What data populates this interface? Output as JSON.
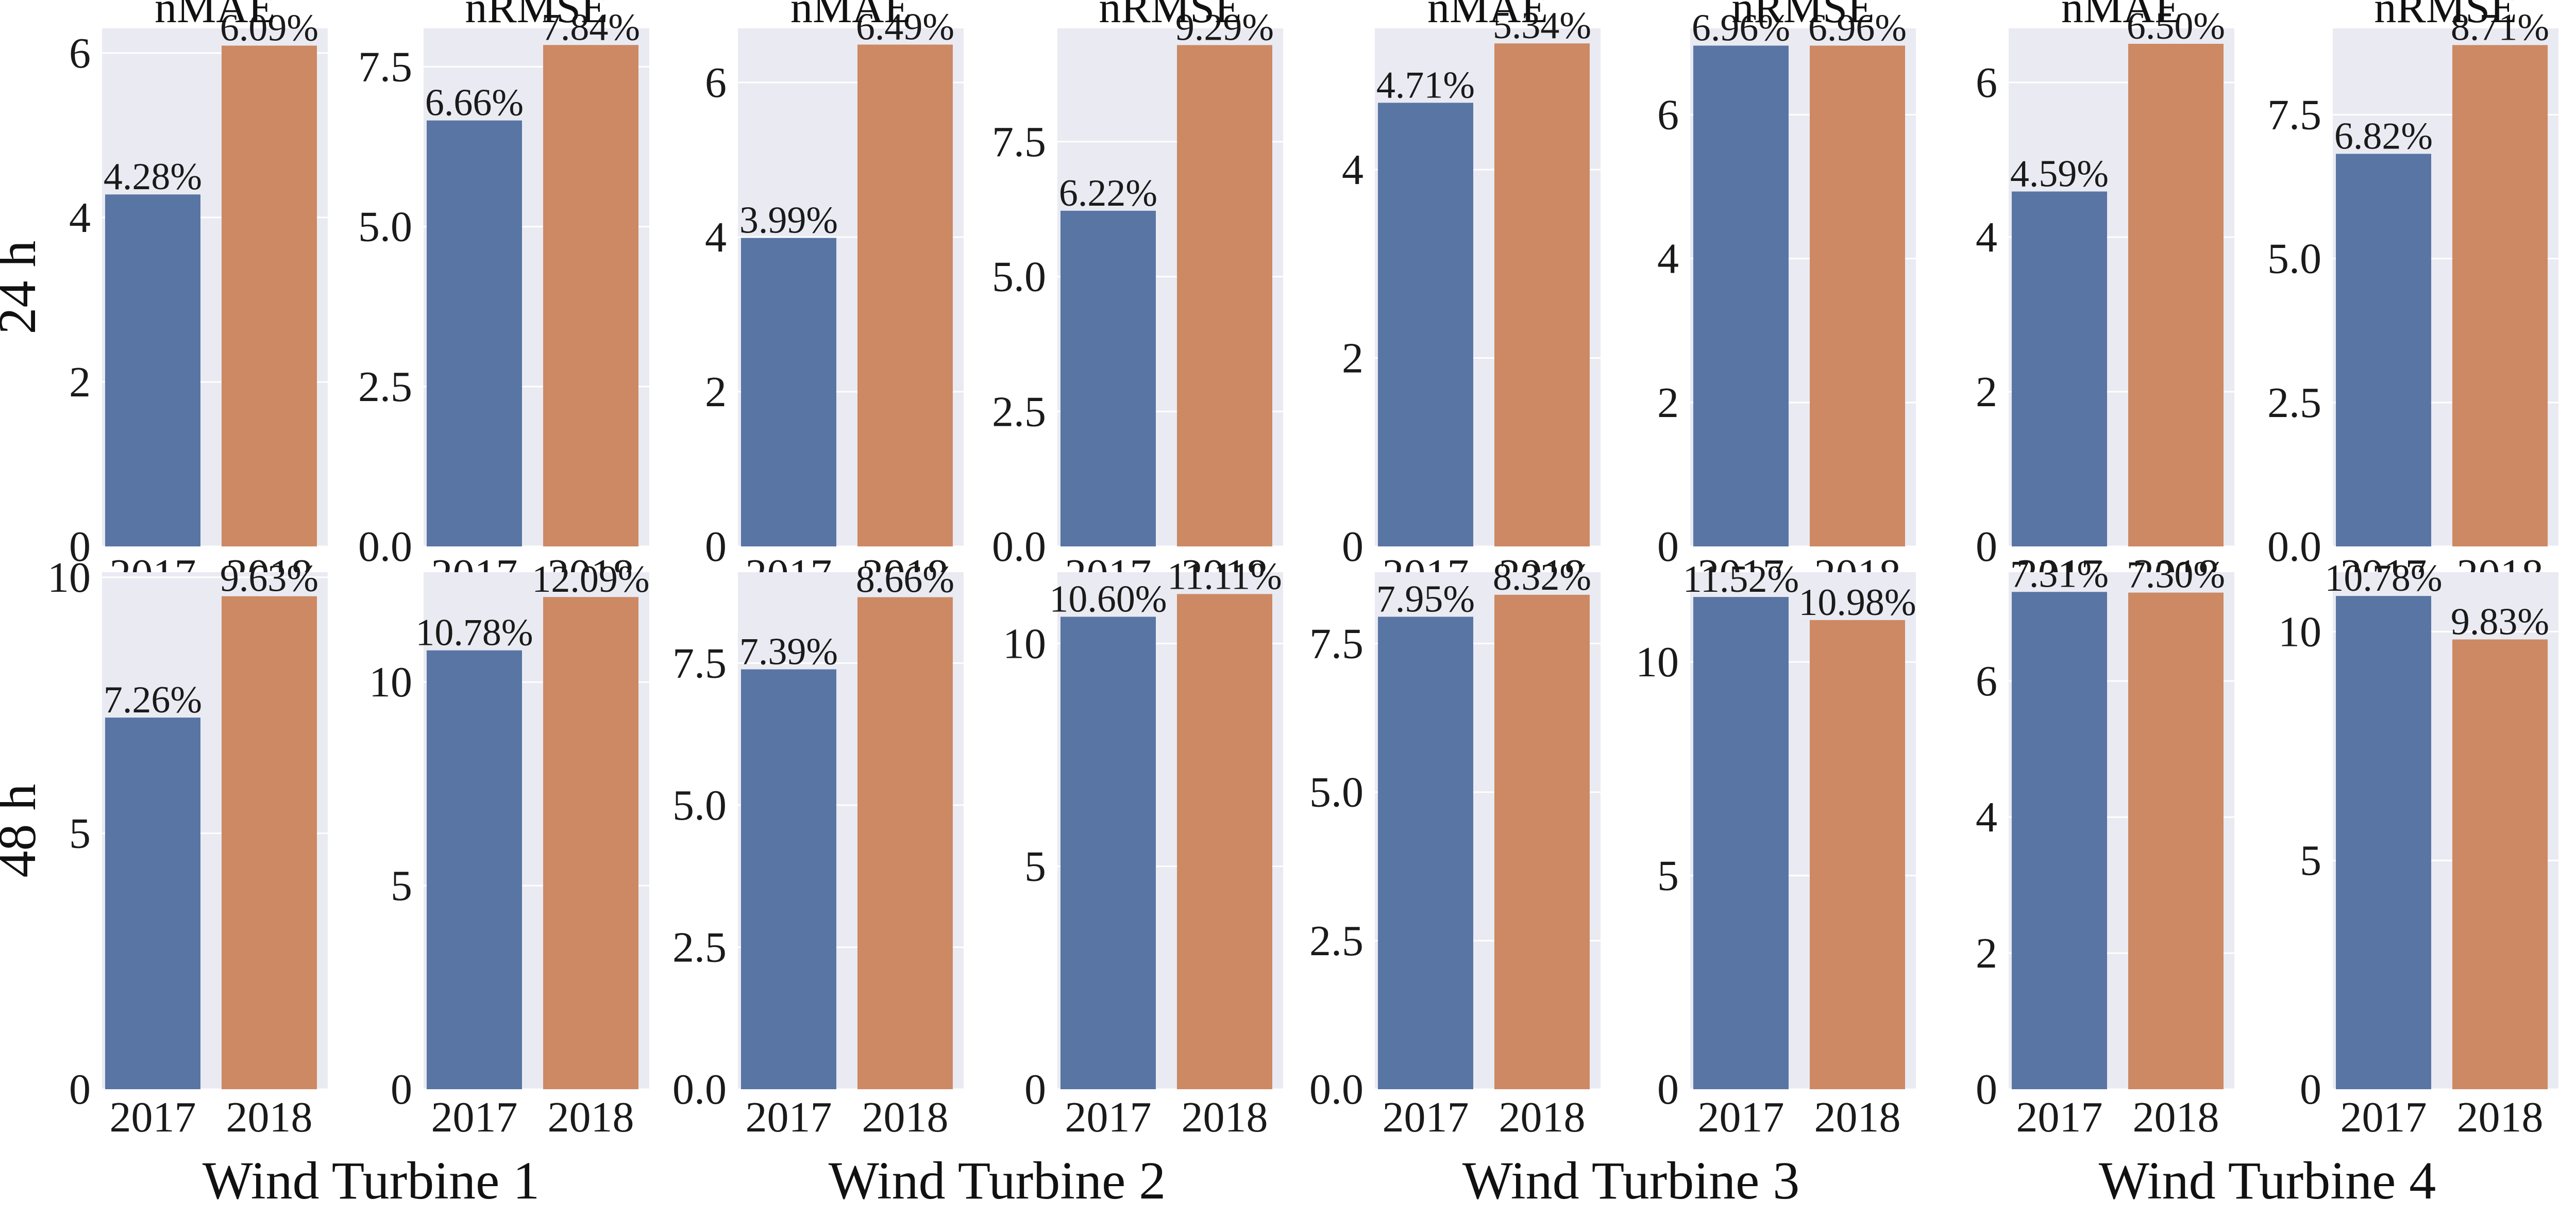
{
  "chart_data": {
    "type": "bar",
    "categories": [
      "2017",
      "2018"
    ],
    "colors": {
      "2017": "#5875A4",
      "2018": "#CC8963"
    },
    "rows": [
      {
        "label": "24 h"
      },
      {
        "label": "48 h"
      }
    ],
    "groups": [
      {
        "label": "Wind Turbine 1"
      },
      {
        "label": "Wind Turbine 2"
      },
      {
        "label": "Wind Turbine 3"
      },
      {
        "label": "Wind Turbine 4"
      }
    ],
    "panels": [
      {
        "row": 0,
        "col": 0,
        "title": "nMAE",
        "values": [
          4.28,
          6.09
        ],
        "labels": [
          "4.28%",
          "6.09%"
        ],
        "ylim": [
          0,
          6.3
        ],
        "yticks": [
          "0",
          "2",
          "4",
          "6"
        ]
      },
      {
        "row": 0,
        "col": 1,
        "title": "nRMSE",
        "values": [
          6.66,
          7.84
        ],
        "labels": [
          "6.66%",
          "7.84%"
        ],
        "ylim": [
          0,
          8.1
        ],
        "yticks": [
          "0.0",
          "2.5",
          "5.0",
          "7.5"
        ]
      },
      {
        "row": 0,
        "col": 2,
        "title": "nMAE",
        "values": [
          3.99,
          6.49
        ],
        "labels": [
          "3.99%",
          "6.49%"
        ],
        "ylim": [
          0,
          6.7
        ],
        "yticks": [
          "0",
          "2",
          "4",
          "6"
        ]
      },
      {
        "row": 0,
        "col": 3,
        "title": "nRMSE",
        "values": [
          6.22,
          9.29
        ],
        "labels": [
          "6.22%",
          "9.29%"
        ],
        "ylim": [
          0,
          9.6
        ],
        "yticks": [
          "0.0",
          "2.5",
          "5.0",
          "7.5"
        ]
      },
      {
        "row": 0,
        "col": 4,
        "title": "nMAE",
        "values": [
          4.71,
          5.34
        ],
        "labels": [
          "4.71%",
          "5.34%"
        ],
        "ylim": [
          0,
          5.5
        ],
        "yticks": [
          "0",
          "2",
          "4"
        ]
      },
      {
        "row": 0,
        "col": 5,
        "title": "nRMSE",
        "values": [
          6.96,
          6.96
        ],
        "labels": [
          "6.96%",
          "6.96%"
        ],
        "ylim": [
          0,
          7.2
        ],
        "yticks": [
          "0",
          "2",
          "4",
          "6"
        ]
      },
      {
        "row": 0,
        "col": 6,
        "title": "nMAE",
        "values": [
          4.59,
          6.5
        ],
        "labels": [
          "4.59%",
          "6.50%"
        ],
        "ylim": [
          0,
          6.7
        ],
        "yticks": [
          "0",
          "2",
          "4",
          "6"
        ]
      },
      {
        "row": 0,
        "col": 7,
        "title": "nRMSE",
        "values": [
          6.82,
          8.71
        ],
        "labels": [
          "6.82%",
          "8.71%"
        ],
        "ylim": [
          0,
          9.0
        ],
        "yticks": [
          "0.0",
          "2.5",
          "5.0",
          "7.5"
        ]
      },
      {
        "row": 1,
        "col": 0,
        "title": "",
        "values": [
          7.26,
          9.63
        ],
        "labels": [
          "7.26%",
          "9.63%"
        ],
        "ylim": [
          0,
          10.1
        ],
        "yticks": [
          "0",
          "5",
          "10"
        ]
      },
      {
        "row": 1,
        "col": 1,
        "title": "",
        "values": [
          10.78,
          12.09
        ],
        "labels": [
          "10.78%",
          "12.09%"
        ],
        "ylim": [
          0,
          12.7
        ],
        "yticks": [
          "0",
          "5",
          "10"
        ]
      },
      {
        "row": 1,
        "col": 2,
        "title": "",
        "values": [
          7.39,
          8.66
        ],
        "labels": [
          "7.39%",
          "8.66%"
        ],
        "ylim": [
          0,
          9.1
        ],
        "yticks": [
          "0.0",
          "2.5",
          "5.0",
          "7.5"
        ]
      },
      {
        "row": 1,
        "col": 3,
        "title": "",
        "values": [
          10.6,
          11.11
        ],
        "labels": [
          "10.60%",
          "11.11%"
        ],
        "ylim": [
          0,
          11.6
        ],
        "yticks": [
          "0",
          "5",
          "10"
        ]
      },
      {
        "row": 1,
        "col": 4,
        "title": "",
        "values": [
          7.95,
          8.32
        ],
        "labels": [
          "7.95%",
          "8.32%"
        ],
        "ylim": [
          0,
          8.7
        ],
        "yticks": [
          "0.0",
          "2.5",
          "5.0",
          "7.5"
        ]
      },
      {
        "row": 1,
        "col": 5,
        "title": "",
        "values": [
          11.52,
          10.98
        ],
        "labels": [
          "11.52%",
          "10.98%"
        ],
        "ylim": [
          0,
          12.1
        ],
        "yticks": [
          "0",
          "5",
          "10"
        ]
      },
      {
        "row": 1,
        "col": 6,
        "title": "",
        "values": [
          7.31,
          7.3
        ],
        "labels": [
          "7.31%",
          "7.30%"
        ],
        "ylim": [
          0,
          7.6
        ],
        "yticks": [
          "0",
          "2",
          "4",
          "6"
        ]
      },
      {
        "row": 1,
        "col": 7,
        "title": "",
        "values": [
          10.78,
          9.83
        ],
        "labels": [
          "10.78%",
          "9.83%"
        ],
        "ylim": [
          0,
          11.3
        ],
        "yticks": [
          "0",
          "5",
          "10"
        ]
      }
    ]
  }
}
